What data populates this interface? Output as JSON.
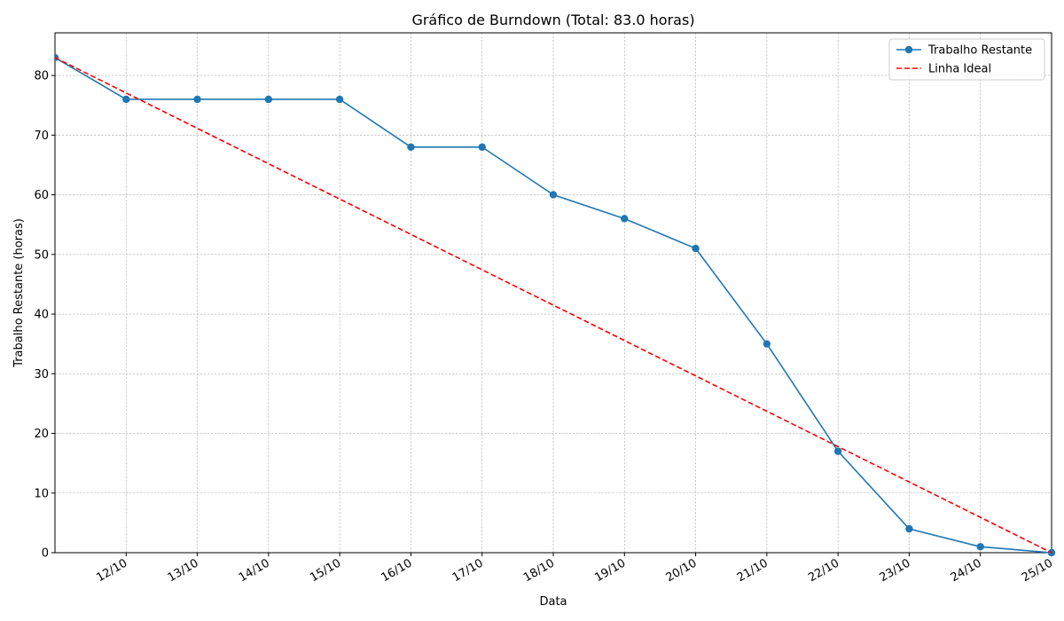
{
  "chart_data": {
    "type": "line",
    "title": "Gráfico de Burndown (Total: 83.0 horas)",
    "x_label": "Data",
    "y_label": "Trabalho Restante (horas)",
    "categories": [
      null,
      "12/10",
      "13/10",
      "14/10",
      "15/10",
      "16/10",
      "17/10",
      "18/10",
      "19/10",
      "20/10",
      "21/10",
      "22/10",
      "23/10",
      "24/10",
      "25/10"
    ],
    "series": [
      {
        "name": "Trabalho Restante",
        "color": "#1f77b4",
        "style": "solid",
        "marker": true,
        "values": [
          83,
          76,
          76,
          76,
          76,
          68,
          68,
          60,
          56,
          51,
          35,
          17,
          4,
          1,
          0
        ]
      },
      {
        "name": "Linha Ideal",
        "color": "#ff0000",
        "style": "dashed",
        "marker": false,
        "values": [
          83,
          77.07,
          71.14,
          65.21,
          59.29,
          53.36,
          47.43,
          41.5,
          35.57,
          29.64,
          23.71,
          17.79,
          11.86,
          5.93,
          0
        ]
      }
    ],
    "ylim": [
      0,
      87.15
    ],
    "yticks": [
      0,
      10,
      20,
      30,
      40,
      50,
      60,
      70,
      80
    ],
    "grid": true,
    "legend": "upper-right"
  }
}
